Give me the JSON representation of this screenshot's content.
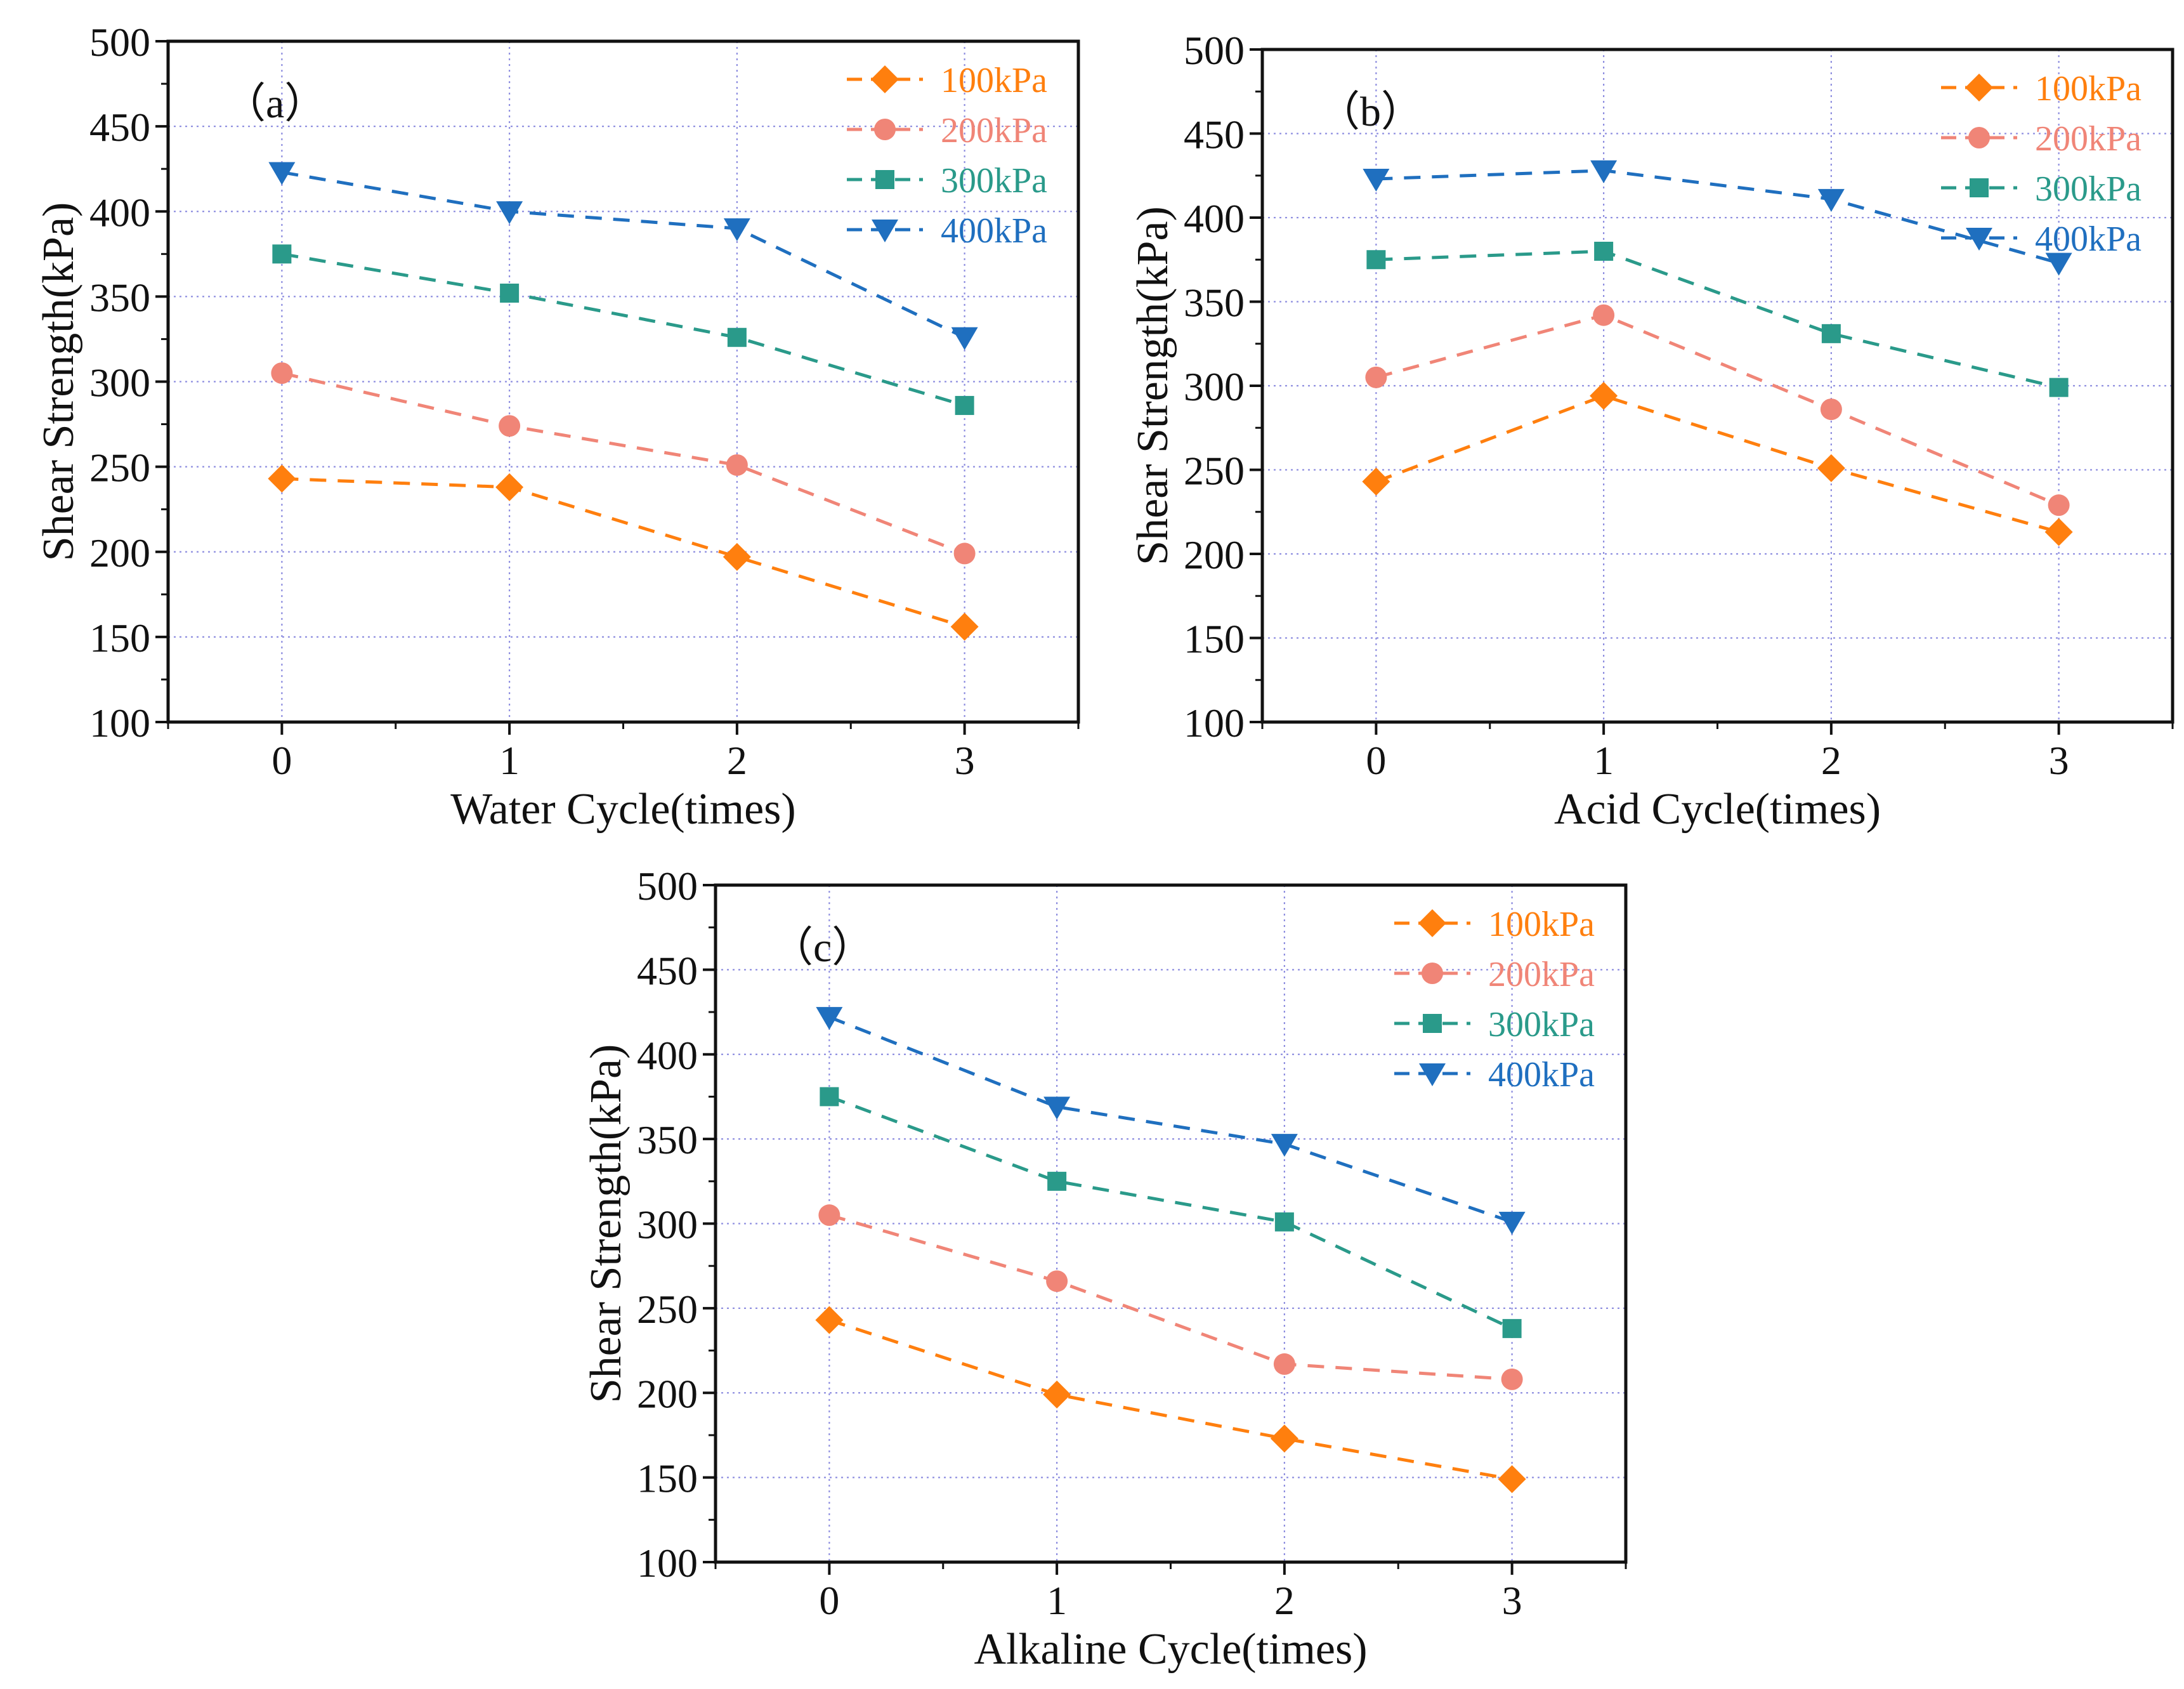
{
  "figure": {
    "ylabel": "Shear Strength(kPa)",
    "yticks": [
      "100",
      "150",
      "200",
      "250",
      "300",
      "350",
      "400",
      "450",
      "500"
    ],
    "xticks": [
      "0",
      "1",
      "2",
      "3"
    ]
  },
  "colors": {
    "100kPa": "#ff7f0e",
    "200kPa": "#f08577",
    "300kPa": "#2a9a8a",
    "400kPa": "#1f6fbf"
  },
  "chart_data": [
    {
      "type": "line",
      "panel_label": "（a）",
      "title": "",
      "xlabel": "Water Cycle(times)",
      "ylabel": "Shear Strength(kPa)",
      "x": [
        0,
        1,
        2,
        3
      ],
      "xlim": [
        -0.5,
        3.5
      ],
      "ylim": [
        100,
        500
      ],
      "grid": true,
      "legend_position": "top-right",
      "series": [
        {
          "name": "100kPa",
          "marker": "diamond",
          "values": [
            243,
            238,
            197,
            156
          ]
        },
        {
          "name": "200kPa",
          "marker": "circle",
          "values": [
            305,
            274,
            251,
            199
          ]
        },
        {
          "name": "300kPa",
          "marker": "square",
          "values": [
            375,
            352,
            326,
            286
          ]
        },
        {
          "name": "400kPa",
          "marker": "triangle-down",
          "values": [
            423,
            400,
            390,
            326
          ]
        }
      ]
    },
    {
      "type": "line",
      "panel_label": "（b）",
      "title": "",
      "xlabel": "Acid Cycle(times)",
      "ylabel": "Shear Strength(kPa)",
      "x": [
        0,
        1,
        2,
        3
      ],
      "xlim": [
        -0.5,
        3.5
      ],
      "ylim": [
        100,
        500
      ],
      "grid": true,
      "legend_position": "top-right",
      "series": [
        {
          "name": "100kPa",
          "marker": "diamond",
          "values": [
            243,
            294,
            251,
            213
          ]
        },
        {
          "name": "200kPa",
          "marker": "circle",
          "values": [
            305,
            342,
            286,
            229
          ]
        },
        {
          "name": "300kPa",
          "marker": "square",
          "values": [
            375,
            380,
            331,
            299
          ]
        },
        {
          "name": "400kPa",
          "marker": "triangle-down",
          "values": [
            423,
            428,
            411,
            373
          ]
        }
      ]
    },
    {
      "type": "line",
      "panel_label": "（c）",
      "title": "",
      "xlabel": "Alkaline Cycle(times)",
      "ylabel": "Shear Strength(kPa)",
      "x": [
        0,
        1,
        2,
        3
      ],
      "xlim": [
        -0.5,
        3.5
      ],
      "ylim": [
        100,
        500
      ],
      "grid": true,
      "legend_position": "top-right",
      "series": [
        {
          "name": "100kPa",
          "marker": "diamond",
          "values": [
            243,
            199,
            173,
            149
          ]
        },
        {
          "name": "200kPa",
          "marker": "circle",
          "values": [
            305,
            266,
            217,
            208
          ]
        },
        {
          "name": "300kPa",
          "marker": "square",
          "values": [
            375,
            325,
            301,
            238
          ]
        },
        {
          "name": "400kPa",
          "marker": "triangle-down",
          "values": [
            422,
            369,
            347,
            301
          ]
        }
      ]
    }
  ]
}
